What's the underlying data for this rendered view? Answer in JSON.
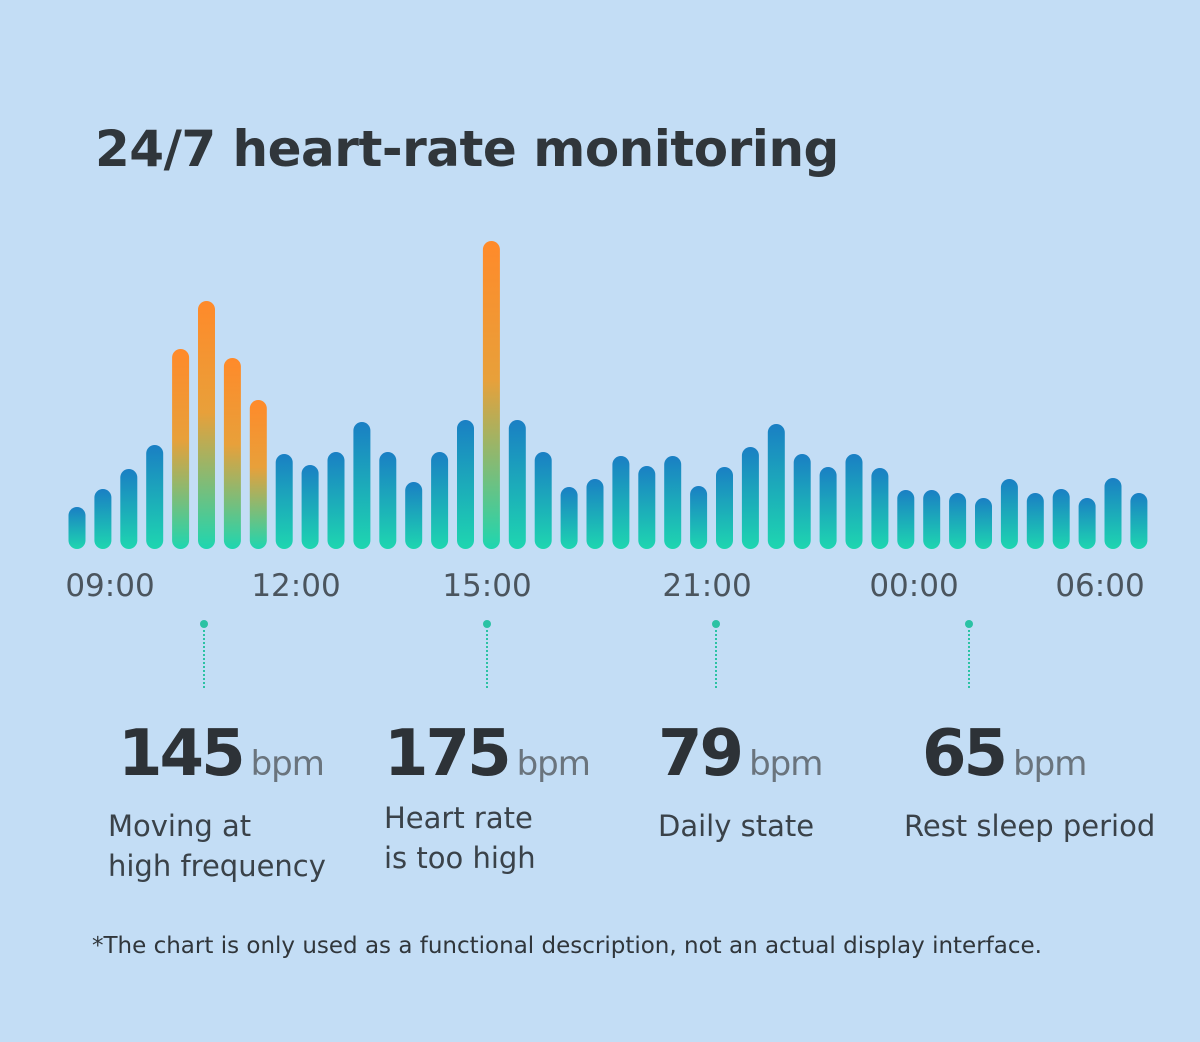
{
  "title": "24/7 heart-rate monitoring",
  "chart_data": {
    "type": "bar",
    "title": "24/7 heart-rate monitoring",
    "x_tick_labels": [
      "09:00",
      "12:00",
      "15:00",
      "21:00",
      "00:00",
      "06:00"
    ],
    "values": [
      42,
      60,
      80,
      104,
      200,
      248,
      191,
      149,
      95,
      84,
      97,
      127,
      97,
      67,
      97,
      129,
      308,
      129,
      97,
      62,
      70,
      93,
      83,
      93,
      63,
      82,
      102,
      125,
      95,
      82,
      95,
      81,
      59,
      59,
      56,
      51,
      70,
      56,
      60,
      51,
      71,
      56
    ],
    "highlight_indices": [
      4,
      5,
      6,
      7,
      16
    ],
    "colors": {
      "bar_top": "#1a7fc4",
      "bar_bottom": "#1ed6b0",
      "alert_top": "#ff8a2a",
      "alert_mid": "#e8a03a"
    },
    "callouts": [
      {
        "value": "145",
        "unit": "bpm",
        "label": "Moving at\nhigh frequency"
      },
      {
        "value": "175",
        "unit": "bpm",
        "label": "Heart rate\nis too high"
      },
      {
        "value": "79",
        "unit": "bpm",
        "label": "Daily state"
      },
      {
        "value": "65",
        "unit": "bpm",
        "label": "Rest sleep period"
      }
    ]
  },
  "footnote": "*The chart is only used as a functional description, not an actual display interface."
}
